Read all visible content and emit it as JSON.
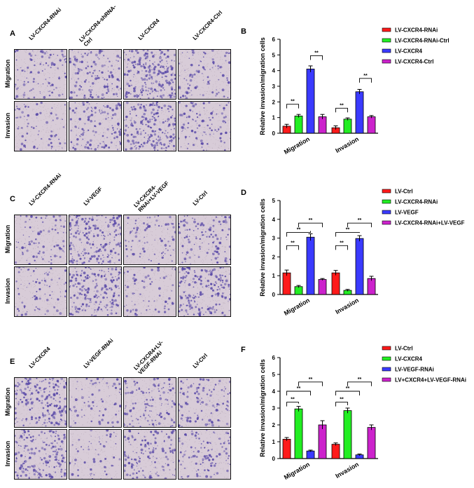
{
  "colors": {
    "red": "#ff1a1a",
    "green": "#22ee22",
    "blue": "#3a3aff",
    "magenta": "#cc22cc",
    "image_bg": "#d8ccd8",
    "stain": "#5a4aa8"
  },
  "micrograph_panels": [
    {
      "letter": "A",
      "columns": [
        "LV-CXCR4-RNAi",
        "LV-CXCR4-shRNA-\nCtrl",
        "LV-CXCR4",
        "LV-CXCR4-Ctrl"
      ],
      "rows": [
        "Migration",
        "Invasion"
      ],
      "density": [
        [
          0.35,
          0.5,
          0.85,
          0.3
        ],
        [
          0.2,
          0.45,
          0.8,
          0.35
        ]
      ]
    },
    {
      "letter": "C",
      "columns": [
        "LV-CXCR4-RNAi",
        "LV-VEGF",
        "LV-CXCR4-\nRNAi+LV-VEGF",
        "LV-Ctrl"
      ],
      "rows": [
        "Migration",
        "Invasion"
      ],
      "density": [
        [
          0.3,
          0.8,
          0.25,
          0.4
        ],
        [
          0.25,
          0.75,
          0.2,
          0.7
        ]
      ]
    },
    {
      "letter": "E",
      "columns": [
        "LV-CXCR4",
        "LV-VEGF-RNAi",
        "LV-CXCR4+LV-\nVEGF-RNAi",
        "LV-Ctrl"
      ],
      "rows": [
        "Migration",
        "Invasion"
      ],
      "density": [
        [
          0.75,
          0.2,
          0.45,
          0.4
        ],
        [
          0.7,
          0.15,
          0.5,
          0.35
        ]
      ]
    }
  ],
  "chart_data": [
    {
      "letter": "B",
      "type": "bar",
      "ylabel": "Relative invasion/migration cells",
      "ylim": [
        0,
        6
      ],
      "yticks": [
        "0",
        "1",
        "2",
        "3",
        "4",
        "5",
        "6"
      ],
      "categories": [
        "Migration",
        "Invasion"
      ],
      "series": [
        {
          "name": "LV-CXCR4-RNAi",
          "color": "#ff1a1a",
          "values": [
            0.45,
            0.35
          ],
          "errors": [
            0.12,
            0.12
          ]
        },
        {
          "name": "LV-CXCR4-RNAi-Ctrl",
          "color": "#22ee22",
          "values": [
            1.1,
            0.9
          ],
          "errors": [
            0.1,
            0.08
          ]
        },
        {
          "name": "LV-CXCR4",
          "color": "#3a3aff",
          "values": [
            4.1,
            2.65
          ],
          "errors": [
            0.2,
            0.15
          ]
        },
        {
          "name": "LV-CXCR4-Ctrl",
          "color": "#cc22cc",
          "values": [
            1.05,
            1.05
          ],
          "errors": [
            0.15,
            0.08
          ]
        }
      ],
      "significance": [
        {
          "category": 0,
          "from": 0,
          "to": 1,
          "label": "**",
          "level": 1.85
        },
        {
          "category": 0,
          "from": 2,
          "to": 3,
          "label": "**",
          "level": 4.95
        },
        {
          "category": 1,
          "from": 0,
          "to": 1,
          "label": "**",
          "level": 1.6
        },
        {
          "category": 1,
          "from": 2,
          "to": 3,
          "label": "**",
          "level": 3.5
        }
      ]
    },
    {
      "letter": "D",
      "type": "bar",
      "ylabel": "Relative invasion/migration cells",
      "ylim": [
        0,
        5
      ],
      "yticks": [
        "0",
        "1",
        "2",
        "3",
        "4",
        "5"
      ],
      "categories": [
        "Migration",
        "Invasion"
      ],
      "series": [
        {
          "name": "LV-Ctrl",
          "color": "#ff1a1a",
          "values": [
            1.15,
            1.15
          ],
          "errors": [
            0.15,
            0.13
          ]
        },
        {
          "name": "LV-CXCR4-RNAi",
          "color": "#22ee22",
          "values": [
            0.42,
            0.22
          ],
          "errors": [
            0.06,
            0.05
          ]
        },
        {
          "name": "LV-VEGF",
          "color": "#3a3aff",
          "values": [
            3.05,
            2.98
          ],
          "errors": [
            0.18,
            0.15
          ]
        },
        {
          "name": "LV-CXCR4-RNAi+LV-VEGF",
          "color": "#cc22cc",
          "values": [
            0.8,
            0.85
          ],
          "errors": [
            0.05,
            0.12
          ]
        }
      ],
      "significance": [
        {
          "category": 0,
          "from": 0,
          "to": 1,
          "label": "**",
          "level": 2.6
        },
        {
          "category": 0,
          "from": 0,
          "to": 2,
          "label": "**",
          "level": 3.3
        },
        {
          "category": 0,
          "from": 1,
          "to": 3,
          "label": "**",
          "level": 3.8
        },
        {
          "category": 1,
          "from": 0,
          "to": 1,
          "label": "**",
          "level": 2.6
        },
        {
          "category": 1,
          "from": 0,
          "to": 2,
          "label": "**",
          "level": 3.3
        },
        {
          "category": 1,
          "from": 1,
          "to": 3,
          "label": "**",
          "level": 3.8
        }
      ]
    },
    {
      "letter": "F",
      "type": "bar",
      "ylabel": "Relative invasion/migration cells",
      "ylim": [
        0,
        6
      ],
      "yticks": [
        "0",
        "1",
        "2",
        "3",
        "4",
        "5",
        "6"
      ],
      "categories": [
        "Migration",
        "Invasion"
      ],
      "series": [
        {
          "name": "LV-Ctrl",
          "color": "#ff1a1a",
          "values": [
            1.15,
            0.85
          ],
          "errors": [
            0.1,
            0.08
          ]
        },
        {
          "name": "LV-CXCR4",
          "color": "#22ee22",
          "values": [
            2.95,
            2.85
          ],
          "errors": [
            0.15,
            0.15
          ]
        },
        {
          "name": "LV-VEGF-RNAi",
          "color": "#3a3aff",
          "values": [
            0.45,
            0.22
          ],
          "errors": [
            0.05,
            0.05
          ]
        },
        {
          "name": "LV+CXCR4+LV-VEGF-RNAi",
          "color": "#cc22cc",
          "values": [
            2.0,
            1.85
          ],
          "errors": [
            0.25,
            0.15
          ]
        }
      ],
      "significance": [
        {
          "category": 0,
          "from": 0,
          "to": 1,
          "label": "**",
          "level": 3.35
        },
        {
          "category": 0,
          "from": 0,
          "to": 2,
          "label": "**",
          "level": 4.0
        },
        {
          "category": 0,
          "from": 1,
          "to": 3,
          "label": "**",
          "level": 4.55
        },
        {
          "category": 1,
          "from": 0,
          "to": 1,
          "label": "**",
          "level": 3.35
        },
        {
          "category": 1,
          "from": 0,
          "to": 2,
          "label": "**",
          "level": 4.0
        },
        {
          "category": 1,
          "from": 1,
          "to": 3,
          "label": "**",
          "level": 4.55
        }
      ]
    }
  ]
}
